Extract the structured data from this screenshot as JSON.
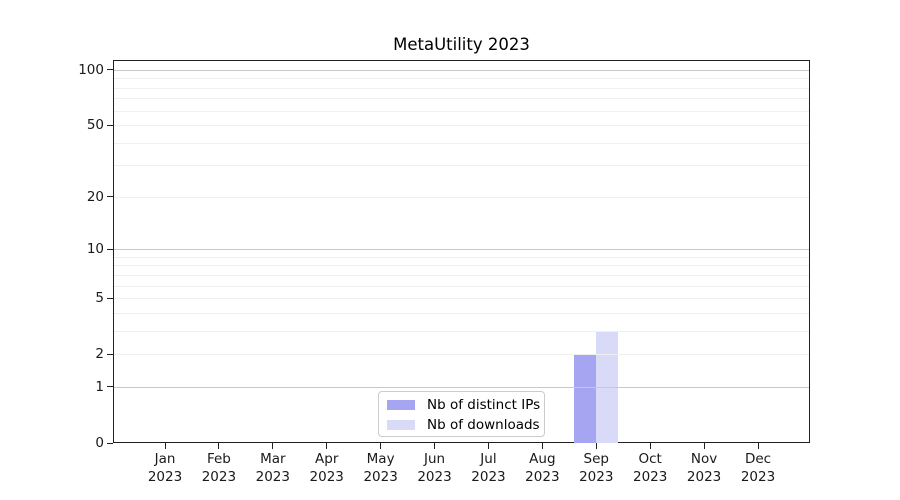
{
  "chart_data": {
    "type": "bar",
    "title": "MetaUtility 2023",
    "categories": [
      "Jan",
      "Feb",
      "Mar",
      "Apr",
      "May",
      "Jun",
      "Jul",
      "Aug",
      "Sep",
      "Oct",
      "Nov",
      "Dec"
    ],
    "year_suffix": "2023",
    "series": [
      {
        "name": "Nb of distinct IPs",
        "color": "#a5a5f2",
        "values": [
          0,
          0,
          0,
          0,
          0,
          0,
          0,
          0,
          2,
          0,
          0,
          0
        ]
      },
      {
        "name": "Nb of downloads",
        "color": "#d9d9f8",
        "values": [
          0,
          0,
          0,
          0,
          0,
          0,
          0,
          0,
          3,
          0,
          0,
          0
        ]
      }
    ],
    "xlabel": "",
    "ylabel": "",
    "yscale": "log1p",
    "ylim": [
      0,
      113
    ],
    "y_ticks": [
      0,
      1,
      2,
      5,
      10,
      20,
      50,
      100
    ],
    "grid_major_values": [
      1,
      10,
      100
    ],
    "grid_minor_values": [
      2,
      3,
      4,
      5,
      6,
      7,
      8,
      9,
      20,
      30,
      40,
      50,
      60,
      70,
      80,
      90
    ],
    "grid_major_color": "#c9c9c9",
    "grid_minor_color": "#efefef",
    "legend_position": "inside-bottom-center",
    "grid_on": true
  }
}
